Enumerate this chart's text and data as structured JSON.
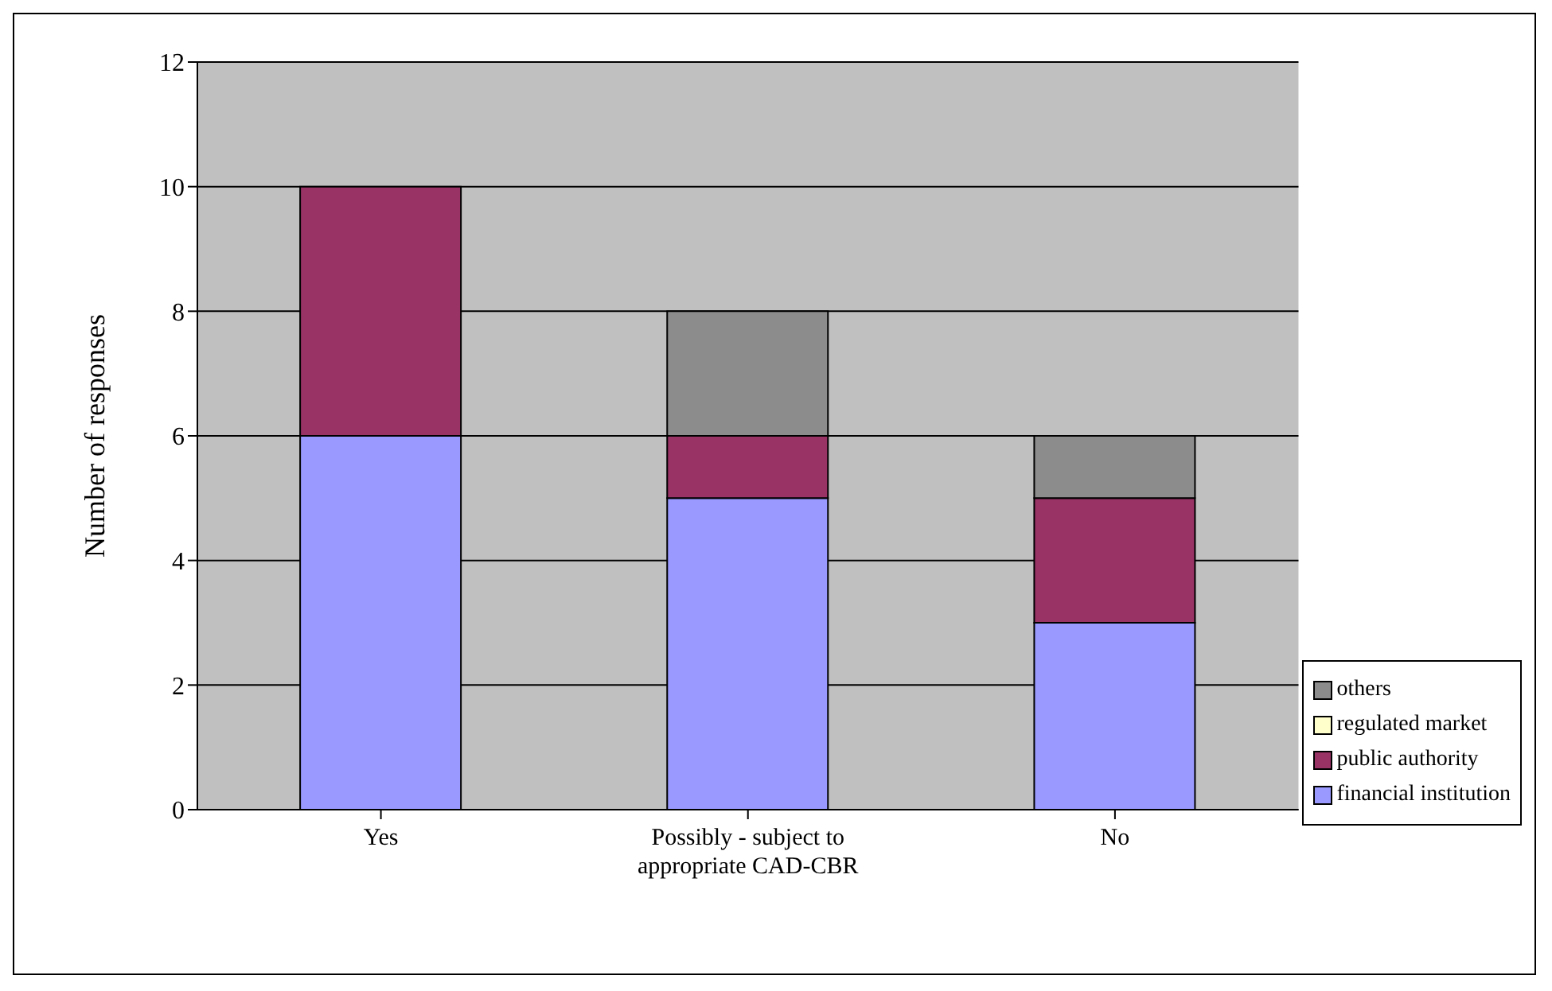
{
  "chart_data": {
    "type": "bar",
    "stacked": true,
    "ylabel": "Number of responses",
    "categories": [
      "Yes",
      "Possibly - subject to appropriate CAD-CBR",
      "No"
    ],
    "series": [
      {
        "name": "financial institution",
        "color": "#9999ff",
        "values": [
          6,
          5,
          3
        ]
      },
      {
        "name": "public authority",
        "color": "#993366",
        "values": [
          4,
          1,
          2
        ]
      },
      {
        "name": "regulated market",
        "color": "#ffffcc",
        "values": [
          0,
          0,
          0
        ]
      },
      {
        "name": "others",
        "color": "#8c8c8c",
        "values": [
          0,
          2,
          1
        ]
      }
    ],
    "ylim": [
      0,
      12
    ],
    "yticks": [
      0,
      2,
      4,
      6,
      8,
      10,
      12
    ],
    "grid": "y",
    "legend": "right"
  }
}
